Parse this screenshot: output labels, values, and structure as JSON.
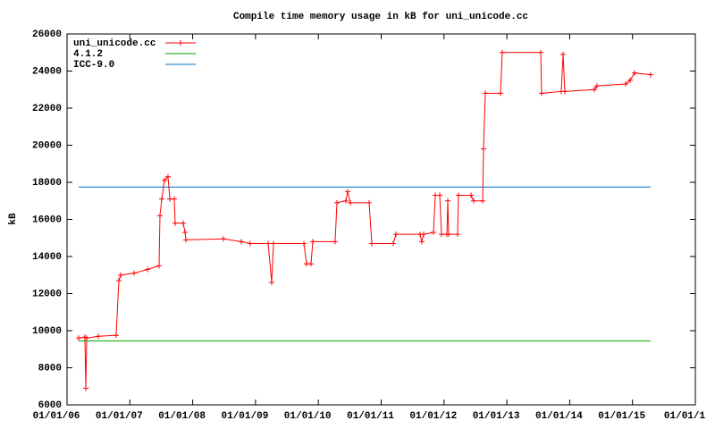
{
  "chart_data": {
    "type": "line",
    "title": "Compile time memory usage in kB for uni_unicode.cc",
    "y_label": "kB",
    "xlim": [
      2006,
      2016
    ],
    "xticks": [
      {
        "value": 2006,
        "label": "01/01/06"
      },
      {
        "value": 2007,
        "label": "01/01/07"
      },
      {
        "value": 2008,
        "label": "01/01/08"
      },
      {
        "value": 2009,
        "label": "01/01/09"
      },
      {
        "value": 2010,
        "label": "01/01/10"
      },
      {
        "value": 2011,
        "label": "01/01/11"
      },
      {
        "value": 2012,
        "label": "01/01/12"
      },
      {
        "value": 2013,
        "label": "01/01/13"
      },
      {
        "value": 2014,
        "label": "01/01/14"
      },
      {
        "value": 2015,
        "label": "01/01/15"
      },
      {
        "value": 2016,
        "label": "01/01/1"
      }
    ],
    "ylim": [
      6000,
      26000
    ],
    "yticks": [
      6000,
      8000,
      10000,
      12000,
      14000,
      16000,
      18000,
      20000,
      22000,
      24000,
      26000
    ],
    "legend": "top-left",
    "series": [
      {
        "name": "uni_unicode.cc",
        "color": "#ff0000",
        "markers": true,
        "x": [
          2006.185,
          2006.284,
          2006.299,
          2006.313,
          2006.498,
          2006.782,
          2006.825,
          2006.853,
          2007.067,
          2007.28,
          2007.465,
          2007.479,
          2007.508,
          2007.55,
          2007.607,
          2007.636,
          2007.707,
          2007.721,
          2007.849,
          2007.878,
          2007.892,
          2008.489,
          2008.774,
          2008.916,
          2009.201,
          2009.257,
          2009.286,
          2009.77,
          2009.812,
          2009.883,
          2009.912,
          2010.267,
          2010.296,
          2010.438,
          2010.467,
          2010.509,
          2010.808,
          2010.851,
          2011.192,
          2011.235,
          2011.619,
          2011.647,
          2011.676,
          2011.832,
          2011.861,
          2011.932,
          2011.96,
          2012.046,
          2012.06,
          2012.074,
          2012.216,
          2012.23,
          2012.43,
          2012.472,
          2012.615,
          2012.629,
          2012.657,
          2012.899,
          2012.927,
          2013.539,
          2013.553,
          2013.866,
          2013.895,
          2013.923,
          2014.392,
          2014.435,
          2014.89,
          2014.962,
          2015.033,
          2015.289
        ],
        "values": [
          9600,
          9650,
          6900,
          9600,
          9700,
          9750,
          12700,
          13000,
          13100,
          13300,
          13500,
          16200,
          17100,
          18100,
          18300,
          17100,
          17100,
          15800,
          15800,
          15300,
          14900,
          14950,
          14800,
          14700,
          14700,
          12600,
          14700,
          14700,
          13600,
          13600,
          14800,
          14800,
          16900,
          17000,
          17500,
          16900,
          16900,
          14700,
          14700,
          15200,
          15200,
          14800,
          15200,
          15300,
          17300,
          17300,
          15200,
          15200,
          17000,
          15200,
          15200,
          17300,
          17300,
          17000,
          17000,
          19800,
          22800,
          22800,
          25000,
          25000,
          22800,
          22900,
          24900,
          22900,
          23000,
          23200,
          23300,
          23500,
          23900,
          23800
        ]
      },
      {
        "name": "4.1.2",
        "color": "#00a000",
        "markers": false,
        "x": [
          2006.185,
          2015.289
        ],
        "values": [
          9450,
          9450
        ]
      },
      {
        "name": "ICC-9.0",
        "color": "#0070c0",
        "markers": false,
        "x": [
          2006.185,
          2015.289
        ],
        "values": [
          17750,
          17750
        ]
      }
    ]
  }
}
